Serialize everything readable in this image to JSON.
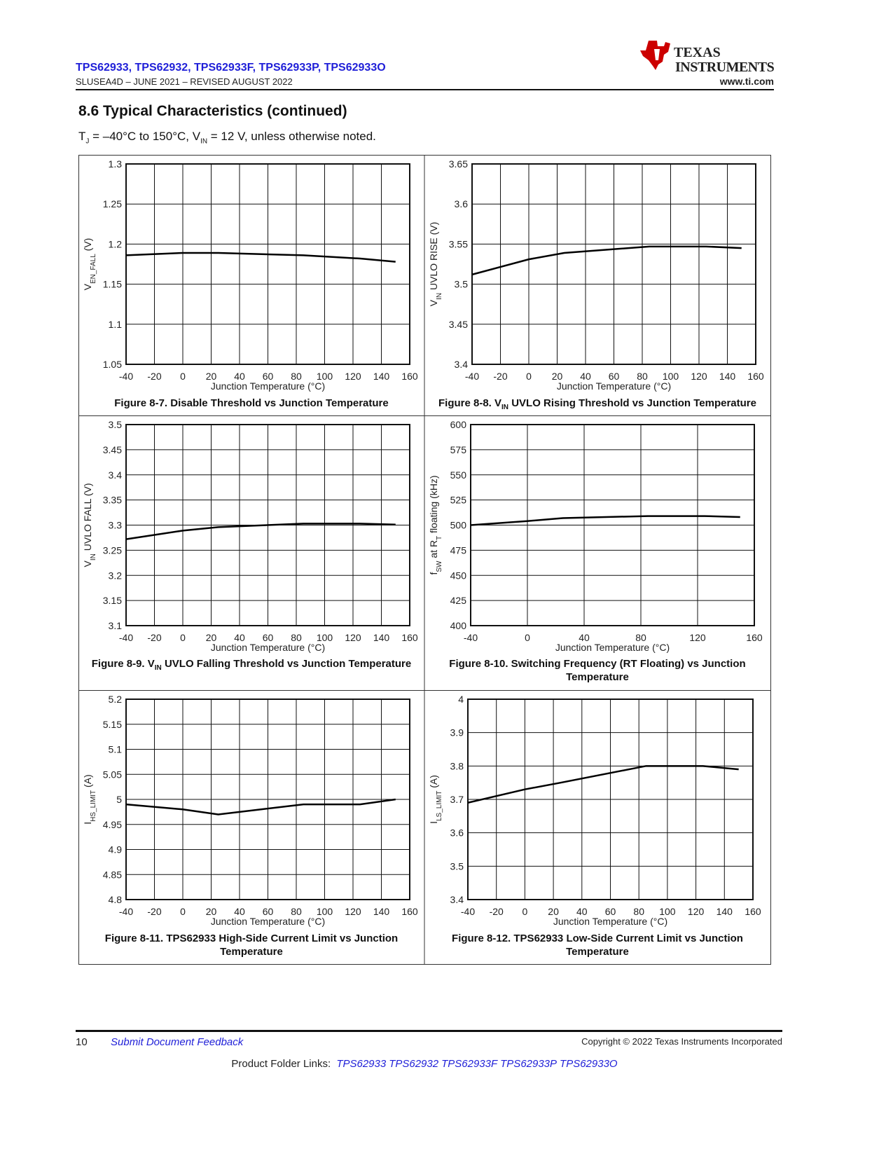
{
  "header": {
    "title": "TPS62933, TPS62932, TPS62933F, TPS62933P, TPS62933O",
    "doc_info": "SLUSEA4D – JUNE 2021 – REVISED AUGUST 2022",
    "logo_line1": "TEXAS",
    "logo_line2": "INSTRUMENTS",
    "website": "www.ti.com"
  },
  "section": {
    "title": "8.6 Typical Characteristics (continued)",
    "conditions": [
      "T",
      "J",
      " = –40°C to 150°C, V",
      "IN",
      " = 12 V, unless otherwise noted."
    ]
  },
  "chart_data": [
    {
      "type": "line",
      "caption": [
        "Figure 8-7. Disable Threshold vs Junction Temperature"
      ],
      "xlabel": "Junction Temperature (°C)",
      "ylabel": [
        "V",
        "EN_FALL",
        " (V)"
      ],
      "x": [
        -40,
        0,
        25,
        85,
        125,
        150
      ],
      "values": [
        1.186,
        1.189,
        1.189,
        1.186,
        1.182,
        1.178
      ],
      "color": "#000000",
      "xlim": [
        -40,
        160
      ],
      "xticks": [
        -40,
        -20,
        0,
        20,
        40,
        60,
        80,
        100,
        120,
        140,
        160
      ],
      "ylim": [
        1.05,
        1.3
      ],
      "yticks": [
        1.05,
        1.1,
        1.15,
        1.2,
        1.25,
        1.3
      ],
      "grid": true
    },
    {
      "type": "line",
      "caption": [
        "Figure 8-8. V",
        "IN",
        " UVLO Rising Threshold vs Junction Temperature"
      ],
      "xlabel": "Junction Temperature (°C)",
      "ylabel": [
        "V",
        "IN",
        " UVLO RISE (V)"
      ],
      "x": [
        -40,
        0,
        25,
        85,
        125,
        150
      ],
      "values": [
        3.512,
        3.531,
        3.539,
        3.547,
        3.547,
        3.545
      ],
      "color": "#000000",
      "xlim": [
        -40,
        160
      ],
      "xticks": [
        -40,
        -20,
        0,
        20,
        40,
        60,
        80,
        100,
        120,
        140,
        160
      ],
      "ylim": [
        3.4,
        3.65
      ],
      "yticks": [
        3.4,
        3.45,
        3.5,
        3.55,
        3.6,
        3.65
      ],
      "grid": true
    },
    {
      "type": "line",
      "caption": [
        "Figure 8-9. V",
        "IN",
        " UVLO Falling Threshold vs Junction Temperature"
      ],
      "xlabel": "Junction Temperature (°C)",
      "ylabel": [
        "V",
        "IN",
        " UVLO FALL (V)"
      ],
      "x": [
        -40,
        0,
        25,
        85,
        125,
        150
      ],
      "values": [
        3.272,
        3.289,
        3.296,
        3.303,
        3.303,
        3.301
      ],
      "color": "#000000",
      "xlim": [
        -40,
        160
      ],
      "xticks": [
        -40,
        -20,
        0,
        20,
        40,
        60,
        80,
        100,
        120,
        140,
        160
      ],
      "ylim": [
        3.1,
        3.5
      ],
      "yticks": [
        3.1,
        3.15,
        3.2,
        3.25,
        3.3,
        3.35,
        3.4,
        3.45,
        3.5
      ],
      "grid": true
    },
    {
      "type": "line",
      "caption": [
        "Figure 8-10. Switching Frequency (RT Floating) vs Junction Temperature"
      ],
      "xlabel": "Junction Temperature (°C)",
      "ylabel": [
        "f",
        "SW",
        " at R",
        "T",
        " floating (kHz)"
      ],
      "x": [
        -40,
        0,
        25,
        85,
        125,
        150
      ],
      "values": [
        500,
        504,
        507,
        509,
        509,
        508
      ],
      "color": "#000000",
      "xlim": [
        -40,
        160
      ],
      "xticks": [
        -40,
        0,
        40,
        80,
        120,
        160
      ],
      "ylim": [
        400,
        600
      ],
      "yticks": [
        400,
        425,
        450,
        475,
        500,
        525,
        550,
        575,
        600
      ],
      "grid": true
    },
    {
      "type": "line",
      "caption": [
        "Figure 8-11. TPS62933 High-Side Current Limit vs Junction Temperature"
      ],
      "xlabel": "Junction Temperature (°C)",
      "ylabel": [
        "I",
        "HS_LIMIT",
        " (A)"
      ],
      "x": [
        -40,
        0,
        25,
        85,
        125,
        150
      ],
      "values": [
        4.99,
        4.98,
        4.97,
        4.99,
        4.99,
        5.0
      ],
      "color": "#000000",
      "xlim": [
        -40,
        160
      ],
      "xticks": [
        -40,
        -20,
        0,
        20,
        40,
        60,
        80,
        100,
        120,
        140,
        160
      ],
      "ylim": [
        4.8,
        5.2
      ],
      "yticks": [
        4.8,
        4.85,
        4.9,
        4.95,
        5,
        5.05,
        5.1,
        5.15,
        5.2
      ],
      "grid": true
    },
    {
      "type": "line",
      "caption": [
        "Figure 8-12. TPS62933 Low-Side Current Limit vs Junction Temperature"
      ],
      "xlabel": "Junction Temperature (°C)",
      "ylabel": [
        "I",
        "LS_LIMIT",
        " (A)"
      ],
      "x": [
        -40,
        0,
        25,
        85,
        125,
        150
      ],
      "values": [
        3.69,
        3.73,
        3.75,
        3.8,
        3.8,
        3.79
      ],
      "color": "#000000",
      "xlim": [
        -40,
        160
      ],
      "xticks": [
        -40,
        -20,
        0,
        20,
        40,
        60,
        80,
        100,
        120,
        140,
        160
      ],
      "ylim": [
        3.4,
        4
      ],
      "yticks": [
        3.4,
        3.5,
        3.6,
        3.7,
        3.8,
        3.9,
        4
      ],
      "grid": true
    }
  ],
  "footer": {
    "page_number": "10",
    "feedback": "Submit Document Feedback",
    "copyright": "Copyright © 2022 Texas Instruments Incorporated",
    "links_label": "Product Folder Links:",
    "links": [
      "TPS62933",
      "TPS62932",
      "TPS62933F",
      "TPS62933P",
      "TPS62933O"
    ]
  }
}
